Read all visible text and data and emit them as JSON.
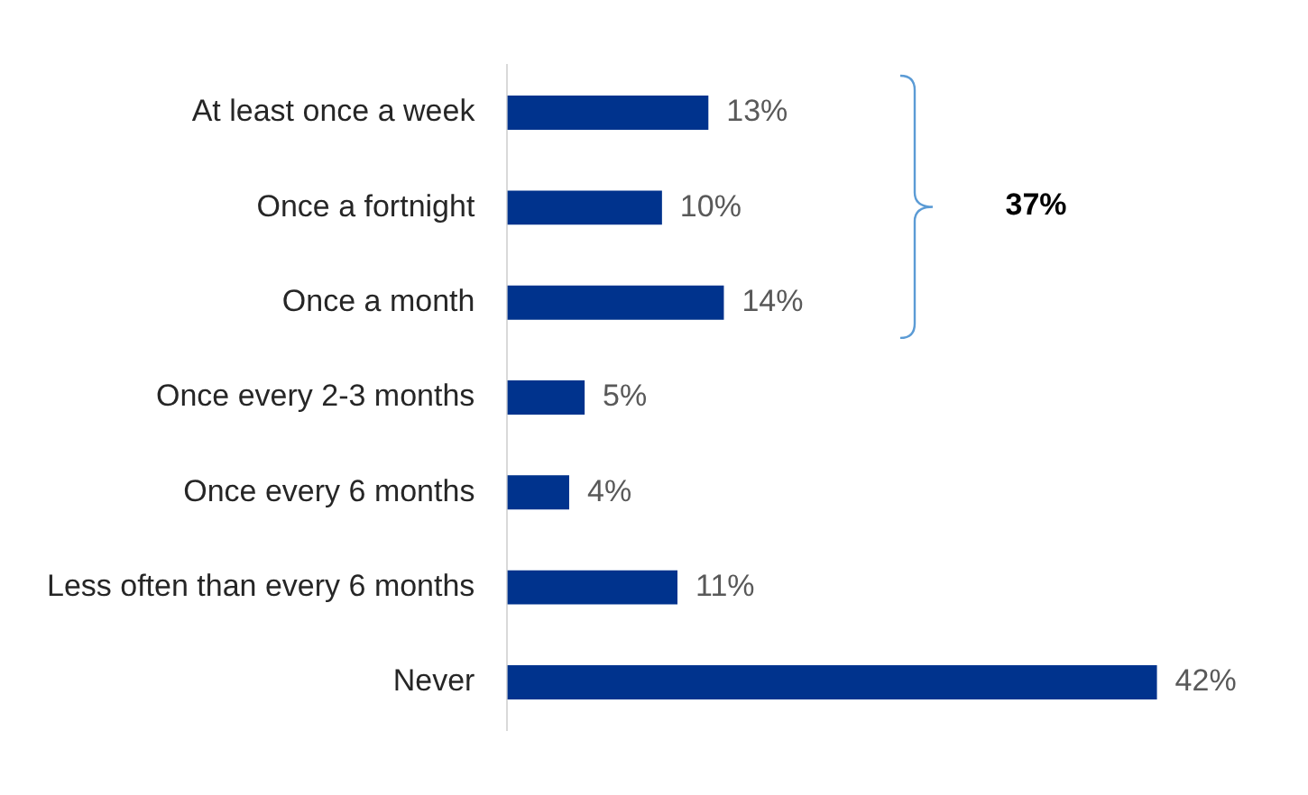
{
  "chart_data": {
    "type": "bar",
    "orientation": "horizontal",
    "categories": [
      "At least once a week",
      "Once a fortnight",
      "Once a month",
      "Once every 2-3 months",
      "Once every 6 months",
      "Less often than every 6 months",
      "Never"
    ],
    "values": [
      13,
      10,
      14,
      5,
      4,
      11,
      42
    ],
    "value_labels": [
      "13%",
      "10%",
      "14%",
      "5%",
      "4%",
      "11%",
      "42%"
    ],
    "color": "#00338d",
    "legend": false,
    "annotations": [
      "37%"
    ]
  }
}
